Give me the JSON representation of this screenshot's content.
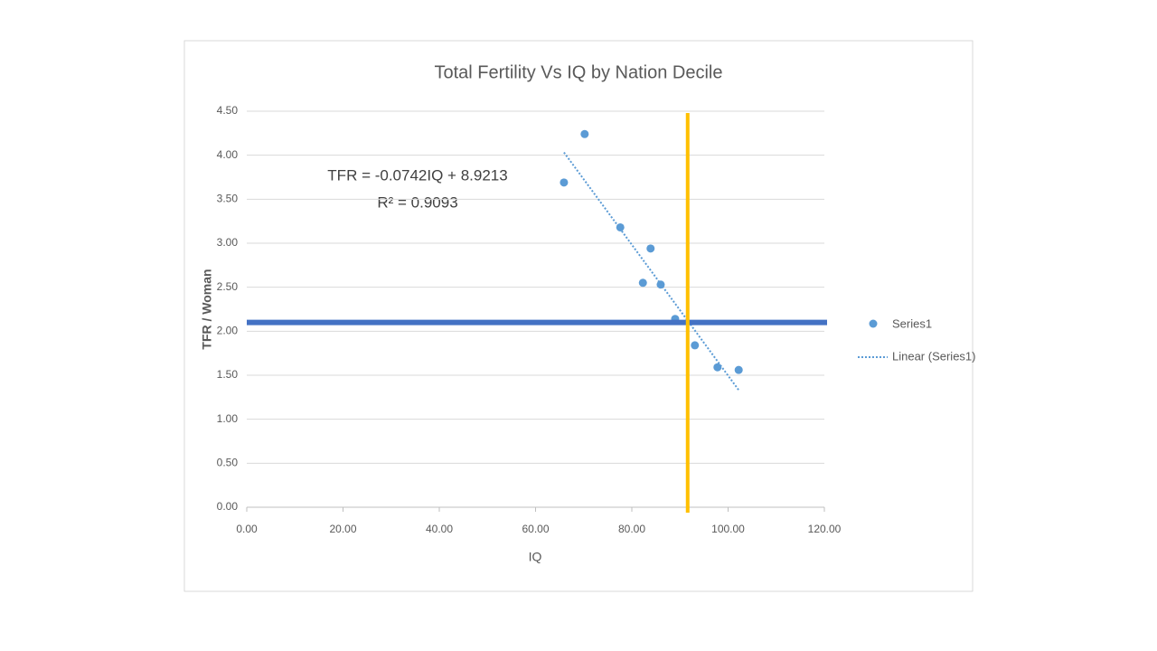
{
  "chart_data": {
    "type": "scatter",
    "title": "Total Fertility Vs IQ by Nation Decile",
    "x_label": "IQ",
    "y_label": "TFR / Woman",
    "series": [
      {
        "name": "Series1",
        "color": "#5b9bd5",
        "x": [
          65.9,
          70.2,
          77.6,
          83.9,
          82.3,
          86.0,
          89.0,
          93.1,
          97.8,
          102.2
        ],
        "values": [
          3.69,
          4.24,
          3.18,
          2.94,
          2.55,
          2.53,
          2.14,
          1.84,
          1.59,
          1.56
        ]
      }
    ],
    "trendline": {
      "name": "Linear (Series1)",
      "color": "#5b9bd5",
      "equation": "TFR = -0.0742IQ + 8.9213",
      "r_squared": "R² = 0.9093"
    },
    "reference_lines": [
      {
        "axis": "y",
        "value": 2.1,
        "color": "#4472c4"
      },
      {
        "axis": "x",
        "value": 91.6,
        "color": "#ffc000"
      }
    ],
    "xlim": [
      0,
      120
    ],
    "xticks": [
      {
        "value": 0,
        "label": "0.00"
      },
      {
        "value": 20,
        "label": "20.00"
      },
      {
        "value": 40,
        "label": "40.00"
      },
      {
        "value": 60,
        "label": "60.00"
      },
      {
        "value": 80,
        "label": "80.00"
      },
      {
        "value": 100,
        "label": "100.00"
      },
      {
        "value": 120,
        "label": "120.00"
      }
    ],
    "ylim": [
      0,
      4.5
    ],
    "yticks": [
      {
        "value": 0,
        "label": "0.00"
      },
      {
        "value": 0.5,
        "label": "0.50"
      },
      {
        "value": 1,
        "label": "1.00"
      },
      {
        "value": 1.5,
        "label": "1.50"
      },
      {
        "value": 2,
        "label": "2.00"
      },
      {
        "value": 2.5,
        "label": "2.50"
      },
      {
        "value": 3,
        "label": "3.00"
      },
      {
        "value": 3.5,
        "label": "3.50"
      },
      {
        "value": 4,
        "label": "4.00"
      },
      {
        "value": 4.5,
        "label": "4.50"
      }
    ],
    "grid": true,
    "legend": "right"
  }
}
